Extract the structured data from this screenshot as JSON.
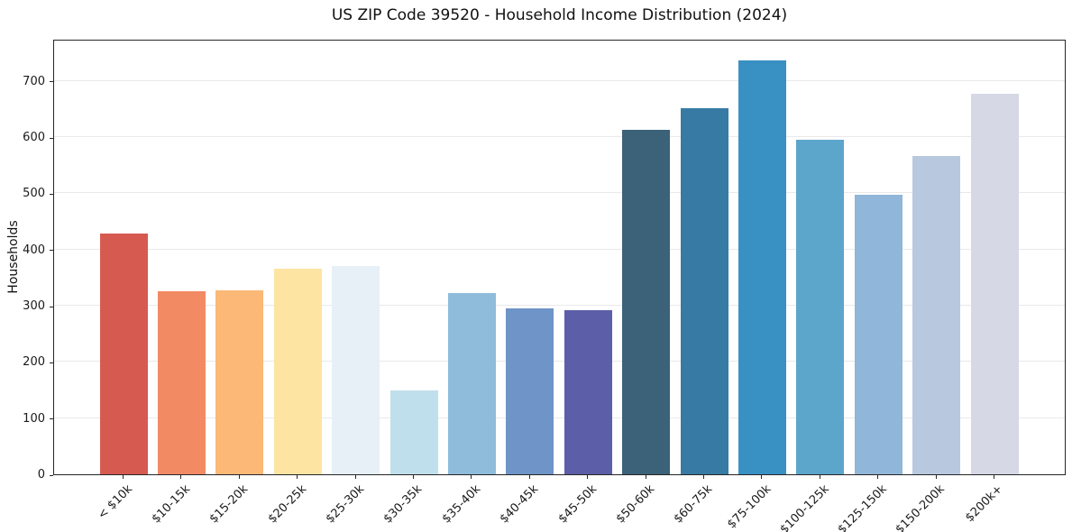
{
  "figure": {
    "title": "US ZIP Code 39520 - Household Income Distribution (2024)"
  },
  "chart_data": {
    "type": "bar",
    "title": "US ZIP Code 39520 - Household Income Distribution (2024)",
    "xlabel": "",
    "ylabel": "Households",
    "categories": [
      "< $10k",
      "$10-15k",
      "$15-20k",
      "$20-25k",
      "$25-30k",
      "$30-35k",
      "$35-40k",
      "$40-45k",
      "$45-50k",
      "$50-60k",
      "$60-75k",
      "$75-100k",
      "$100-125k",
      "$125-150k",
      "$150-200k",
      "$200k+"
    ],
    "values": [
      428,
      325,
      327,
      366,
      370,
      150,
      323,
      296,
      292,
      613,
      652,
      737,
      595,
      497,
      567,
      677
    ],
    "bar_colors": [
      "#d75a50",
      "#f28a63",
      "#fbb877",
      "#fde4a3",
      "#e6f0f6",
      "#c0dfec",
      "#8fbcdb",
      "#6f94c8",
      "#5c5fa7",
      "#3b6278",
      "#377ba4",
      "#3990c3",
      "#5ca5cb",
      "#90b6d9",
      "#b8c9df",
      "#d6d8e6"
    ],
    "yticks": [
      0,
      100,
      200,
      300,
      400,
      500,
      600,
      700
    ],
    "ylim": [
      0,
      775
    ],
    "grid": "horizontal",
    "legend_position": "none",
    "background_color": "#ffffff",
    "spine_color": "#262626",
    "grid_color": "#e9e9e9"
  }
}
